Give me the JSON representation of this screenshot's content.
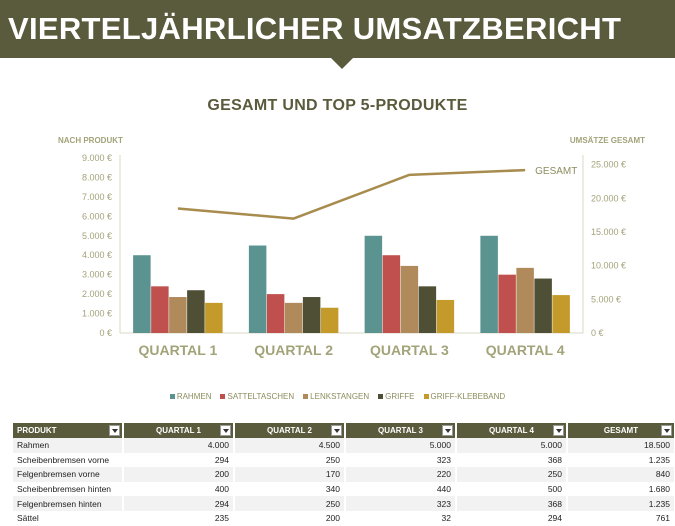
{
  "header": {
    "title": "VIERTELJÄHRLICHER UMSATZBERICHT"
  },
  "chart": {
    "title": "GESAMT UND TOP 5-PRODUKTE",
    "left_axis_label": "NACH PRODUKT",
    "right_axis_label": "UMSÄTZE GESAMT",
    "left_ticks": [
      "0 €",
      "1.000 €",
      "2.000 €",
      "3.000 €",
      "4.000 €",
      "5.000 €",
      "6.000 €",
      "7.000 €",
      "8.000 €",
      "9.000 €"
    ],
    "right_ticks": [
      "0 €",
      "5.000 €",
      "10.000 €",
      "15.000 €",
      "20.000 €",
      "25.000 €"
    ],
    "line_label": "GESAMT"
  },
  "chart_data": {
    "type": "bar",
    "title": "GESAMT UND TOP 5-PRODUKTE",
    "categories": [
      "QUARTAL 1",
      "QUARTAL 2",
      "QUARTAL 3",
      "QUARTAL 4"
    ],
    "ylabel": "NACH PRODUKT",
    "ylim": [
      0,
      9000
    ],
    "y2label": "UMSÄTZE GESAMT",
    "y2lim": [
      0,
      26000
    ],
    "series": [
      {
        "name": "RAHMEN",
        "color": "#5b9390",
        "values": [
          4000,
          4500,
          5000,
          5000
        ]
      },
      {
        "name": "SATTELTASCHEN",
        "color": "#c0504d",
        "values": [
          2400,
          2000,
          4000,
          3000
        ]
      },
      {
        "name": "LENKSTANGEN",
        "color": "#b08a5a",
        "values": [
          1850,
          1550,
          3450,
          3350
        ]
      },
      {
        "name": "GRIFFE",
        "color": "#4f4f35",
        "values": [
          2200,
          1850,
          2400,
          2800
        ]
      },
      {
        "name": "GRIFF-KLEBEBAND",
        "color": "#c49a2a",
        "values": [
          1550,
          1300,
          1700,
          1950
        ]
      }
    ],
    "line_series": {
      "name": "GESAMT",
      "color": "#a88c4e",
      "axis": "right",
      "values": [
        18500,
        17000,
        23500,
        24200
      ]
    },
    "legend": "bottom",
    "grid": false
  },
  "table": {
    "headers": [
      "PRODUKT",
      "QUARTAL 1",
      "QUARTAL 2",
      "QUARTAL 3",
      "QUARTAL 4",
      "GESAMT"
    ],
    "rows": [
      [
        "Rahmen",
        "4.000",
        "4.500",
        "5.000",
        "5.000",
        "18.500"
      ],
      [
        "Scheibenbremsen vorne",
        "294",
        "250",
        "323",
        "368",
        "1.235"
      ],
      [
        "Felgenbremsen vorne",
        "200",
        "170",
        "220",
        "250",
        "840"
      ],
      [
        "Scheibenbremsen hinten",
        "400",
        "340",
        "440",
        "500",
        "1.680"
      ],
      [
        "Felgenbremsen hinten",
        "294",
        "250",
        "323",
        "368",
        "1.235"
      ],
      [
        "Sättel",
        "235",
        "200",
        "32",
        "294",
        "761"
      ]
    ]
  }
}
